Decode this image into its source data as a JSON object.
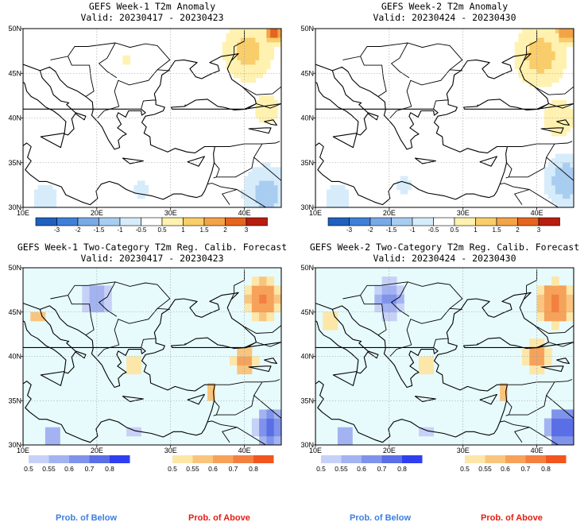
{
  "panels": [
    {
      "title": "GEFS Week-1 T2m Anomaly",
      "valid": "Valid: 20230417 - 20230423",
      "type": "anomaly",
      "hotspots": [
        {
          "lon": 40.5,
          "lat": 47.5,
          "value": 1.2,
          "spread": 2.6
        },
        {
          "lon": 44.0,
          "lat": 49.6,
          "value": 2.2,
          "spread": 1.0
        },
        {
          "lon": 43.0,
          "lat": 41.0,
          "value": 0.9,
          "spread": 1.6
        },
        {
          "lon": 24.0,
          "lat": 46.5,
          "value": 0.6,
          "spread": 1.0
        },
        {
          "lon": 43.0,
          "lat": 31.5,
          "value": -1.3,
          "spread": 2.4
        },
        {
          "lon": 13.0,
          "lat": 31.0,
          "value": -0.7,
          "spread": 2.0
        },
        {
          "lon": 26.0,
          "lat": 32.0,
          "value": -0.6,
          "spread": 1.4
        }
      ]
    },
    {
      "title": "GEFS Week-2 T2m Anomaly",
      "valid": "Valid: 20230424 - 20230430",
      "type": "anomaly",
      "hotspots": [
        {
          "lon": 40.5,
          "lat": 47.0,
          "value": 1.3,
          "spread": 2.6
        },
        {
          "lon": 44.0,
          "lat": 49.6,
          "value": 2.0,
          "spread": 1.1
        },
        {
          "lon": 43.0,
          "lat": 40.0,
          "value": 0.9,
          "spread": 1.8
        },
        {
          "lon": 44.0,
          "lat": 33.0,
          "value": -1.4,
          "spread": 2.2
        },
        {
          "lon": 13.0,
          "lat": 31.0,
          "value": -0.7,
          "spread": 2.0
        },
        {
          "lon": 22.0,
          "lat": 32.5,
          "value": -0.6,
          "spread": 1.5
        }
      ]
    },
    {
      "title": "GEFS Week-1 Two-Category T2m Reg. Calib. Forecast",
      "valid": "Valid: 20230417 - 20230423",
      "type": "probability",
      "hotspots": [
        {
          "lon": 42.5,
          "lat": 46.5,
          "value": 0.72,
          "spread": 3.0
        },
        {
          "lon": 40.0,
          "lat": 39.5,
          "value": 0.68,
          "spread": 2.2
        },
        {
          "lon": 35.5,
          "lat": 36.0,
          "value": 0.62,
          "spread": 1.4
        },
        {
          "lon": 25.0,
          "lat": 39.0,
          "value": 0.56,
          "spread": 1.6
        },
        {
          "lon": 12.0,
          "lat": 44.5,
          "value": 0.6,
          "spread": 1.6
        },
        {
          "lon": 20.0,
          "lat": 46.5,
          "value": -0.6,
          "spread": 3.2
        },
        {
          "lon": 43.5,
          "lat": 32.0,
          "value": -0.78,
          "spread": 2.4
        },
        {
          "lon": 14.0,
          "lat": 31.0,
          "value": -0.58,
          "spread": 2.4
        },
        {
          "lon": 25.0,
          "lat": 31.5,
          "value": -0.56,
          "spread": 1.8
        }
      ]
    },
    {
      "title": "GEFS Week-2 Two-Category T2m Reg. Calib. Forecast",
      "valid": "Valid: 20230424 - 20230430",
      "type": "probability",
      "hotspots": [
        {
          "lon": 42.5,
          "lat": 46.0,
          "value": 0.72,
          "spread": 3.0
        },
        {
          "lon": 40.0,
          "lat": 40.0,
          "value": 0.68,
          "spread": 2.2
        },
        {
          "lon": 35.5,
          "lat": 36.0,
          "value": 0.6,
          "spread": 1.4
        },
        {
          "lon": 25.0,
          "lat": 39.0,
          "value": 0.56,
          "spread": 1.6
        },
        {
          "lon": 12.0,
          "lat": 44.0,
          "value": 0.6,
          "spread": 1.6
        },
        {
          "lon": 20.0,
          "lat": 46.5,
          "value": -0.62,
          "spread": 3.2
        },
        {
          "lon": 43.5,
          "lat": 32.0,
          "value": -0.8,
          "spread": 2.4
        },
        {
          "lon": 14.0,
          "lat": 31.0,
          "value": -0.58,
          "spread": 2.4
        },
        {
          "lon": 25.0,
          "lat": 31.5,
          "value": -0.56,
          "spread": 1.8
        }
      ]
    }
  ],
  "map_extent": {
    "lon": [
      10,
      45
    ],
    "lat": [
      30,
      50
    ]
  },
  "x_ticks": [
    "10E",
    "20E",
    "30E",
    "40E"
  ],
  "y_ticks": [
    "50N",
    "45N",
    "40N",
    "35N",
    "30N"
  ],
  "anomaly_scale": {
    "labels": [
      "-3",
      "-2",
      "-1.5",
      "-1",
      "-0.5",
      "0.5",
      "1",
      "1.5",
      "2",
      "3"
    ],
    "colors": [
      "#1f5fbf",
      "#3f7fd8",
      "#7aaae6",
      "#a9cdf0",
      "#d6ecfb",
      "#ffffff",
      "#fff2b0",
      "#f9cd6a",
      "#f3a347",
      "#e5641f",
      "#b81d0f"
    ]
  },
  "probability_scale": {
    "below_labels": [
      "0.5",
      "0.55",
      "0.6",
      "0.7",
      "0.8"
    ],
    "below_colors": [
      "#c7d1f7",
      "#a3b3f1",
      "#7f93ea",
      "#5a6ee6",
      "#2f3ff0"
    ],
    "above_labels": [
      "0.5",
      "0.55",
      "0.6",
      "0.7",
      "0.8"
    ],
    "above_colors": [
      "#fce7a8",
      "#f9c57e",
      "#f6a25a",
      "#f38040",
      "#f2551e"
    ],
    "neutral_color": "#e7fbfd"
  },
  "captions": {
    "below": "Prob. of Below",
    "above": "Prob. of Above",
    "below_color": "#3d7ee0",
    "above_color": "#e21e12"
  }
}
